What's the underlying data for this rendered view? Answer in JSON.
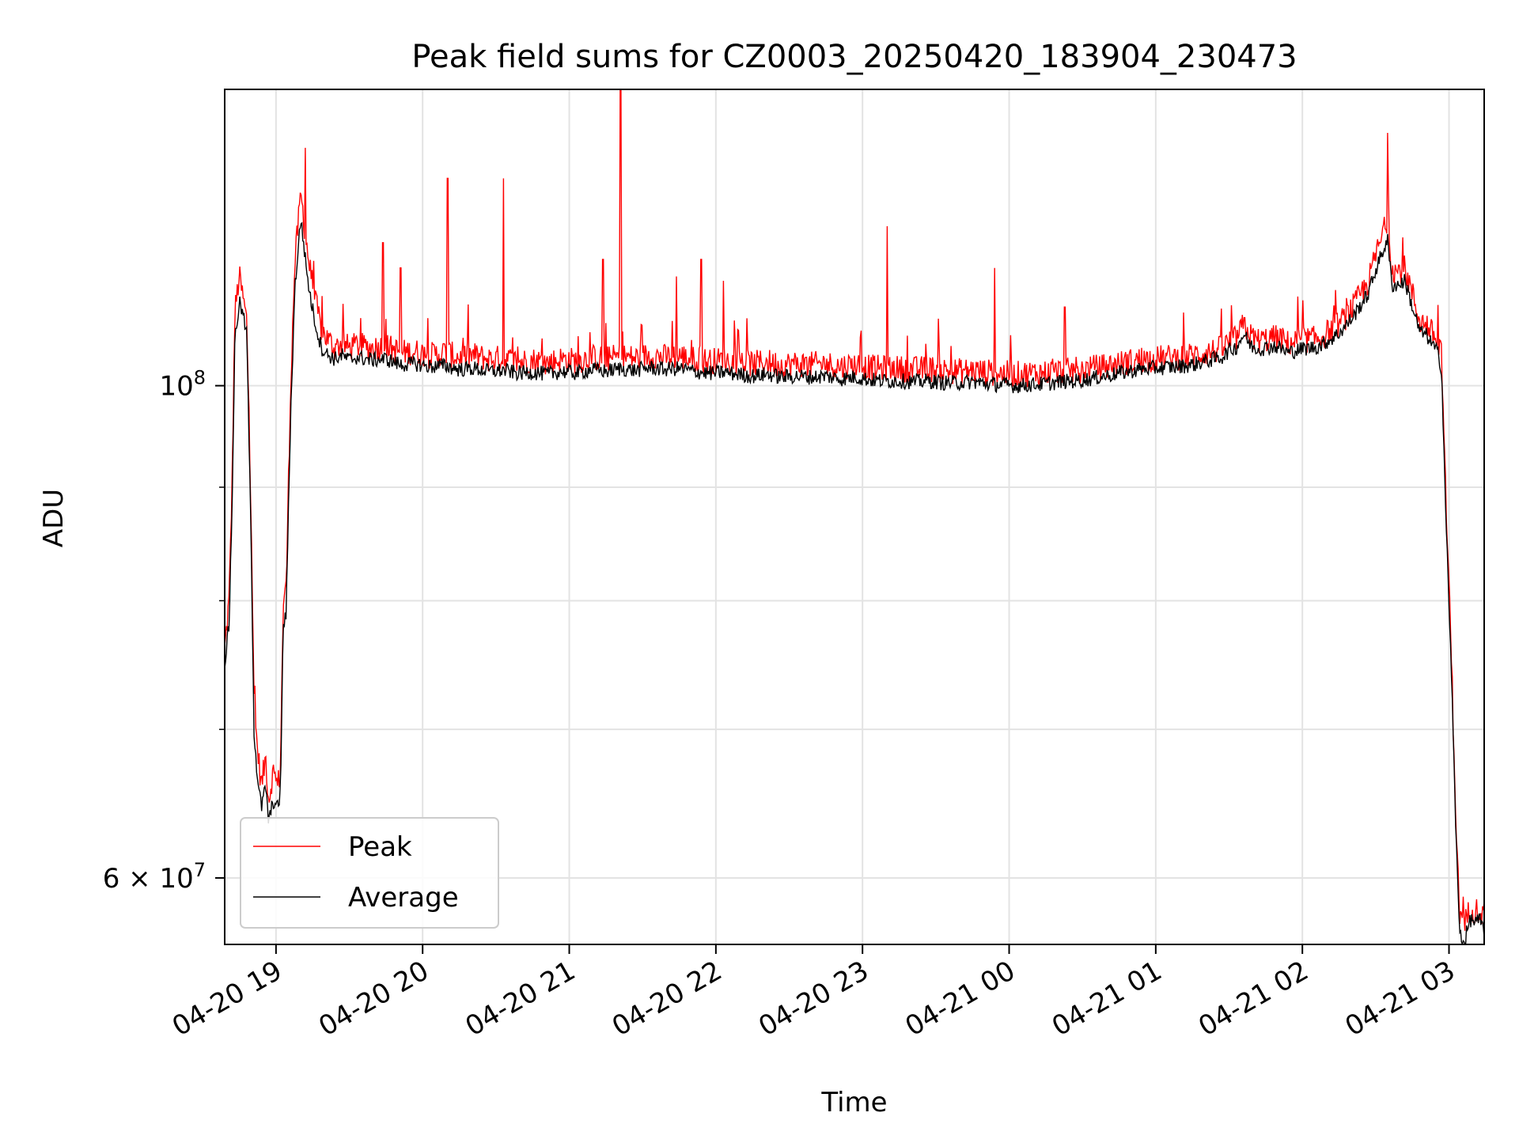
{
  "chart_data": {
    "type": "line",
    "title": "Peak field sums for CZ0003_20250420_183904_230473",
    "xlabel": "Time",
    "ylabel": "ADU",
    "yscale": "log",
    "grid": true,
    "legend_position": "lower-left",
    "x_unit": "hours since 2025-04-20 18:39",
    "xlim": [
      0,
      8.59
    ],
    "ylim": [
      56000000,
      136000000
    ],
    "x_ticks": [
      {
        "label": "04-20 19",
        "value": 0.35
      },
      {
        "label": "04-20 20",
        "value": 1.35
      },
      {
        "label": "04-20 21",
        "value": 2.35
      },
      {
        "label": "04-20 22",
        "value": 3.35
      },
      {
        "label": "04-20 23",
        "value": 4.35
      },
      {
        "label": "04-21 00",
        "value": 5.35
      },
      {
        "label": "04-21 01",
        "value": 6.35
      },
      {
        "label": "04-21 02",
        "value": 7.35
      },
      {
        "label": "04-21 03",
        "value": 8.35
      }
    ],
    "y_ticks": [
      {
        "label_base": "10",
        "label_exp": "8",
        "value": 100000000
      },
      {
        "label_base": "6 × 10",
        "label_exp": "7",
        "value": 60000000
      }
    ],
    "y_minor_ticks": [
      70000000,
      80000000,
      90000000
    ],
    "series": [
      {
        "name": "Peak",
        "color": "#ff0000",
        "points": [
          [
            0,
            76000000
          ],
          [
            0.03,
            80000000
          ],
          [
            0.05,
            90000000
          ],
          [
            0.07,
            108000000
          ],
          [
            0.1,
            112000000
          ],
          [
            0.12,
            110000000
          ],
          [
            0.15,
            107000000
          ],
          [
            0.18,
            88000000
          ],
          [
            0.2,
            72000000
          ],
          [
            0.22,
            69000000
          ],
          [
            0.25,
            66000000
          ],
          [
            0.28,
            68000000
          ],
          [
            0.3,
            65000000
          ],
          [
            0.33,
            67000000
          ],
          [
            0.36,
            66000000
          ],
          [
            0.38,
            67000000
          ],
          [
            0.4,
            80000000
          ],
          [
            0.42,
            81000000
          ],
          [
            0.45,
            100000000
          ],
          [
            0.48,
            114000000
          ],
          [
            0.52,
            122000000
          ],
          [
            0.55,
            117000000
          ],
          [
            0.58,
            113000000
          ],
          [
            0.62,
            109000000
          ],
          [
            0.66,
            106000000
          ],
          [
            0.7,
            105000000
          ],
          [
            0.75,
            104000000
          ],
          [
            0.8,
            104500000
          ],
          [
            0.85,
            104000000
          ],
          [
            0.9,
            104300000
          ],
          [
            1.0,
            104000000
          ],
          [
            1.1,
            104200000
          ],
          [
            1.2,
            103500000
          ],
          [
            1.3,
            103600000
          ],
          [
            1.4,
            103200000
          ],
          [
            1.5,
            103500000
          ],
          [
            1.6,
            103000000
          ],
          [
            1.7,
            103200000
          ],
          [
            1.8,
            102800000
          ],
          [
            1.9,
            102900000
          ],
          [
            2.0,
            102500000
          ],
          [
            2.1,
            102700000
          ],
          [
            2.2,
            102400000
          ],
          [
            2.3,
            102800000
          ],
          [
            2.4,
            102600000
          ],
          [
            2.5,
            103000000
          ],
          [
            2.6,
            102800000
          ],
          [
            2.7,
            103100000
          ],
          [
            2.8,
            102900000
          ],
          [
            2.9,
            103200000
          ],
          [
            3.0,
            103000000
          ],
          [
            3.1,
            103100000
          ],
          [
            3.2,
            102800000
          ],
          [
            3.3,
            102600000
          ],
          [
            3.4,
            102700000
          ],
          [
            3.5,
            102500000
          ],
          [
            3.6,
            102300000
          ],
          [
            3.7,
            102500000
          ],
          [
            3.8,
            102200000
          ],
          [
            3.9,
            102300000
          ],
          [
            4.0,
            102200000
          ],
          [
            4.1,
            102300000
          ],
          [
            4.2,
            102000000
          ],
          [
            4.3,
            102200000
          ],
          [
            4.4,
            101900000
          ],
          [
            4.5,
            101800000
          ],
          [
            4.6,
            101800000
          ],
          [
            4.7,
            101700000
          ],
          [
            4.8,
            101800000
          ],
          [
            4.9,
            101600000
          ],
          [
            5.0,
            101500000
          ],
          [
            5.1,
            101600000
          ],
          [
            5.2,
            101400000
          ],
          [
            5.3,
            101300000
          ],
          [
            5.4,
            101200000
          ],
          [
            5.5,
            101300000
          ],
          [
            5.6,
            101400000
          ],
          [
            5.7,
            101500000
          ],
          [
            5.8,
            101600000
          ],
          [
            5.9,
            101800000
          ],
          [
            6.0,
            102000000
          ],
          [
            6.1,
            102300000
          ],
          [
            6.2,
            102600000
          ],
          [
            6.3,
            102800000
          ],
          [
            6.4,
            102900000
          ],
          [
            6.5,
            103000000
          ],
          [
            6.6,
            103200000
          ],
          [
            6.7,
            103500000
          ],
          [
            6.8,
            103900000
          ],
          [
            6.85,
            104600000
          ],
          [
            6.9,
            105000000
          ],
          [
            6.95,
            106500000
          ],
          [
            7.0,
            105200000
          ],
          [
            7.05,
            104800000
          ],
          [
            7.1,
            104900000
          ],
          [
            7.15,
            105100000
          ],
          [
            7.2,
            105000000
          ],
          [
            7.25,
            104500000
          ],
          [
            7.3,
            104700000
          ],
          [
            7.35,
            104900000
          ],
          [
            7.4,
            104900000
          ],
          [
            7.45,
            105000000
          ],
          [
            7.5,
            105400000
          ],
          [
            7.55,
            106000000
          ],
          [
            7.6,
            106600000
          ],
          [
            7.65,
            107500000
          ],
          [
            7.7,
            108600000
          ],
          [
            7.75,
            110000000
          ],
          [
            7.8,
            111400000
          ],
          [
            7.85,
            114500000
          ],
          [
            7.9,
            117000000
          ],
          [
            7.93,
            119000000
          ],
          [
            7.96,
            113000000
          ],
          [
            8.0,
            112500000
          ],
          [
            8.05,
            113000000
          ],
          [
            8.1,
            110000000
          ],
          [
            8.15,
            107000000
          ],
          [
            8.2,
            106500000
          ],
          [
            8.25,
            105200000
          ],
          [
            8.28,
            104500000
          ],
          [
            8.3,
            103000000
          ],
          [
            8.33,
            88000000
          ],
          [
            8.36,
            78000000
          ],
          [
            8.38,
            70000000
          ],
          [
            8.4,
            63000000
          ],
          [
            8.42,
            58000000
          ],
          [
            8.45,
            57000000
          ],
          [
            8.48,
            57800000
          ],
          [
            8.5,
            58200000
          ],
          [
            8.53,
            58000000
          ],
          [
            8.56,
            58100000
          ],
          [
            8.59,
            57300000
          ]
        ]
      },
      {
        "name": "Average",
        "color": "#000000",
        "points": [
          [
            0,
            75000000
          ],
          [
            0.03,
            78000000
          ],
          [
            0.05,
            88000000
          ],
          [
            0.07,
            105000000
          ],
          [
            0.1,
            109000000
          ],
          [
            0.12,
            108000000
          ],
          [
            0.15,
            105500000
          ],
          [
            0.18,
            85000000
          ],
          [
            0.2,
            70000000
          ],
          [
            0.22,
            67000000
          ],
          [
            0.25,
            64500000
          ],
          [
            0.28,
            66000000
          ],
          [
            0.3,
            63500000
          ],
          [
            0.33,
            65000000
          ],
          [
            0.36,
            64500000
          ],
          [
            0.38,
            65500000
          ],
          [
            0.4,
            78000000
          ],
          [
            0.42,
            79000000
          ],
          [
            0.45,
            97000000
          ],
          [
            0.48,
            111000000
          ],
          [
            0.52,
            119000000
          ],
          [
            0.55,
            114000000
          ],
          [
            0.58,
            110000000
          ],
          [
            0.62,
            106500000
          ],
          [
            0.66,
            104000000
          ],
          [
            0.7,
            103300000
          ],
          [
            0.75,
            102800000
          ],
          [
            0.8,
            103200000
          ],
          [
            0.85,
            102700000
          ],
          [
            0.9,
            103000000
          ],
          [
            1.0,
            102700000
          ],
          [
            1.1,
            102800000
          ],
          [
            1.2,
            102200000
          ],
          [
            1.3,
            102300000
          ],
          [
            1.4,
            102000000
          ],
          [
            1.5,
            102100000
          ],
          [
            1.6,
            101700000
          ],
          [
            1.7,
            101800000
          ],
          [
            1.8,
            101500000
          ],
          [
            1.9,
            101600000
          ],
          [
            2.0,
            101300000
          ],
          [
            2.1,
            101400000
          ],
          [
            2.2,
            101200000
          ],
          [
            2.3,
            101500000
          ],
          [
            2.4,
            101300000
          ],
          [
            2.5,
            101700000
          ],
          [
            2.6,
            101500000
          ],
          [
            2.7,
            101800000
          ],
          [
            2.8,
            101600000
          ],
          [
            2.9,
            101900000
          ],
          [
            3.0,
            101700000
          ],
          [
            3.1,
            101800000
          ],
          [
            3.2,
            101500000
          ],
          [
            3.3,
            101300000
          ],
          [
            3.4,
            101400000
          ],
          [
            3.5,
            101200000
          ],
          [
            3.6,
            101000000
          ],
          [
            3.7,
            101200000
          ],
          [
            3.8,
            100900000
          ],
          [
            3.9,
            101000000
          ],
          [
            4.0,
            100900000
          ],
          [
            4.1,
            101000000
          ],
          [
            4.2,
            100700000
          ],
          [
            4.3,
            100900000
          ],
          [
            4.4,
            100600000
          ],
          [
            4.5,
            100500000
          ],
          [
            4.6,
            100500000
          ],
          [
            4.7,
            100400000
          ],
          [
            4.8,
            100500000
          ],
          [
            4.9,
            100300000
          ],
          [
            5.0,
            100300000
          ],
          [
            5.1,
            100400000
          ],
          [
            5.2,
            100200000
          ],
          [
            5.3,
            100100000
          ],
          [
            5.4,
            100000000
          ],
          [
            5.5,
            100100000
          ],
          [
            5.6,
            100200000
          ],
          [
            5.7,
            100400000
          ],
          [
            5.8,
            100500000
          ],
          [
            5.9,
            100700000
          ],
          [
            6.0,
            101000000
          ],
          [
            6.1,
            101300000
          ],
          [
            6.2,
            101600000
          ],
          [
            6.3,
            101800000
          ],
          [
            6.4,
            101900000
          ],
          [
            6.5,
            102000000
          ],
          [
            6.6,
            102200000
          ],
          [
            6.7,
            102600000
          ],
          [
            6.8,
            103000000
          ],
          [
            6.85,
            103700000
          ],
          [
            6.9,
            104100000
          ],
          [
            6.95,
            105500000
          ],
          [
            7.0,
            104200000
          ],
          [
            7.05,
            103900000
          ],
          [
            7.1,
            104000000
          ],
          [
            7.15,
            104200000
          ],
          [
            7.2,
            104000000
          ],
          [
            7.25,
            103500000
          ],
          [
            7.3,
            103700000
          ],
          [
            7.35,
            103900000
          ],
          [
            7.4,
            104000000
          ],
          [
            7.45,
            104100000
          ],
          [
            7.5,
            104500000
          ],
          [
            7.55,
            105000000
          ],
          [
            7.6,
            105600000
          ],
          [
            7.65,
            106500000
          ],
          [
            7.7,
            107500000
          ],
          [
            7.75,
            108800000
          ],
          [
            7.8,
            110000000
          ],
          [
            7.85,
            112800000
          ],
          [
            7.9,
            115000000
          ],
          [
            7.93,
            116500000
          ],
          [
            7.96,
            111000000
          ],
          [
            8.0,
            111000000
          ],
          [
            8.05,
            111500000
          ],
          [
            8.1,
            108500000
          ],
          [
            8.15,
            105800000
          ],
          [
            8.2,
            105300000
          ],
          [
            8.25,
            104000000
          ],
          [
            8.28,
            103300000
          ],
          [
            8.3,
            101500000
          ],
          [
            8.33,
            86500000
          ],
          [
            8.36,
            76500000
          ],
          [
            8.38,
            69000000
          ],
          [
            8.4,
            62000000
          ],
          [
            8.42,
            57000000
          ],
          [
            8.45,
            56000000
          ],
          [
            8.48,
            57000000
          ],
          [
            8.5,
            57500000
          ],
          [
            8.53,
            57300000
          ],
          [
            8.56,
            57400000
          ],
          [
            8.59,
            56800000
          ]
        ]
      }
    ],
    "spikes": [
      {
        "series": "Peak",
        "x": 0.55,
        "y": 128000000
      },
      {
        "series": "Peak",
        "x": 1.08,
        "y": 116000000
      },
      {
        "series": "Peak",
        "x": 1.2,
        "y": 113000000
      },
      {
        "series": "Peak",
        "x": 1.52,
        "y": 124000000
      },
      {
        "series": "Peak",
        "x": 1.9,
        "y": 124000000
      },
      {
        "series": "Peak",
        "x": 2.58,
        "y": 114000000
      },
      {
        "series": "Peak",
        "x": 2.7,
        "y": 136000000
      },
      {
        "series": "Peak",
        "x": 3.08,
        "y": 112000000
      },
      {
        "series": "Peak",
        "x": 3.25,
        "y": 114000000
      },
      {
        "series": "Peak",
        "x": 3.4,
        "y": 111500000
      },
      {
        "series": "Peak",
        "x": 4.52,
        "y": 118000000
      },
      {
        "series": "Peak",
        "x": 5.25,
        "y": 113000000
      },
      {
        "series": "Peak",
        "x": 5.73,
        "y": 108500000
      },
      {
        "series": "Peak",
        "x": 7.93,
        "y": 130000000
      }
    ]
  }
}
